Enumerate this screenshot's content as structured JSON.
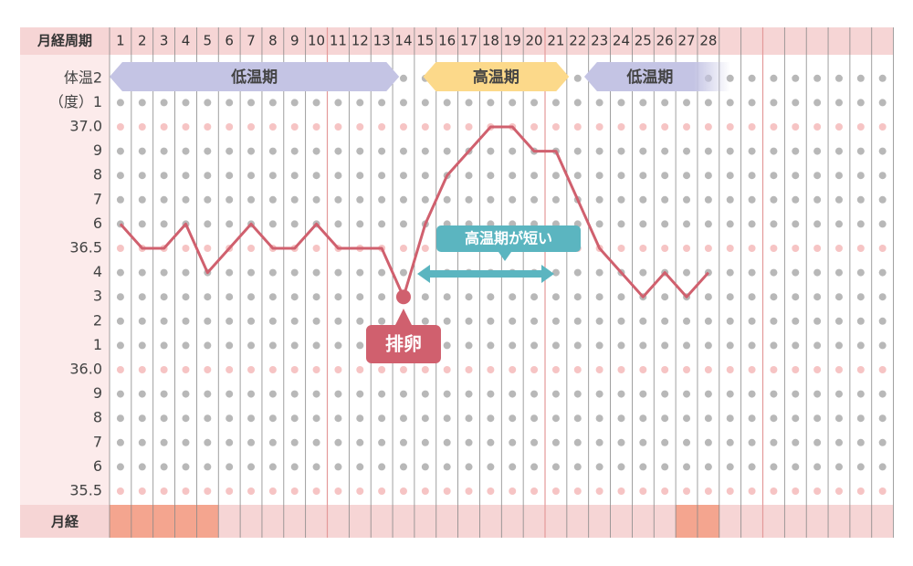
{
  "chart_data": {
    "type": "line",
    "x_label": "月経周期",
    "categories": [
      "1",
      "2",
      "3",
      "4",
      "5",
      "6",
      "7",
      "8",
      "9",
      "10",
      "11",
      "12",
      "13",
      "14",
      "15",
      "16",
      "17",
      "18",
      "19",
      "20",
      "21",
      "22",
      "23",
      "24",
      "25",
      "26",
      "27",
      "28",
      null,
      null,
      null,
      null,
      null,
      null,
      null,
      null
    ],
    "values": [
      36.6,
      36.5,
      36.5,
      36.6,
      36.4,
      36.5,
      36.6,
      36.5,
      36.5,
      36.6,
      36.5,
      36.5,
      36.5,
      36.3,
      36.6,
      36.8,
      36.9,
      37.0,
      37.0,
      36.9,
      36.9,
      36.7,
      36.5,
      36.4,
      36.3,
      36.4,
      36.3,
      36.4,
      null,
      null,
      null,
      null,
      null,
      null,
      null,
      null
    ],
    "color": "#d0606e",
    "ylim": [
      35.45,
      37.3
    ],
    "yticks": [
      {
        "value": 37.2,
        "label": "体温2"
      },
      {
        "value": 37.1,
        "label": "（度）1"
      },
      {
        "value": 37.0,
        "label": "37.0"
      },
      {
        "value": 36.9,
        "label": "9"
      },
      {
        "value": 36.8,
        "label": "8"
      },
      {
        "value": 36.7,
        "label": "7"
      },
      {
        "value": 36.6,
        "label": "6"
      },
      36.5,
      {
        "value": 36.4,
        "label": "4"
      },
      {
        "value": 36.3,
        "label": "3"
      },
      {
        "value": 36.2,
        "label": "2"
      },
      {
        "value": 36.1,
        "label": "1"
      },
      {
        "value": 36.0,
        "label": "36.0"
      },
      {
        "value": 35.9,
        "label": "9"
      },
      {
        "value": 35.8,
        "label": "8"
      },
      {
        "value": 35.7,
        "label": "7"
      },
      {
        "value": 35.6,
        "label": "6"
      },
      35.5
    ],
    "phases": [
      {
        "label": "低温期",
        "color": "#c4c4e4"
      },
      {
        "label": "高温期",
        "color": "#fcd98a"
      },
      {
        "label": "低温期",
        "color": "#c4c4e4"
      }
    ],
    "ovulation_label": "排卵",
    "annotation": "高温期が短い",
    "annotation_color": "#5bb5c0",
    "menses_label": "月経",
    "menses_days": [
      1,
      2,
      3,
      4,
      5,
      27,
      28
    ],
    "menses_color": "#f4a58f"
  }
}
